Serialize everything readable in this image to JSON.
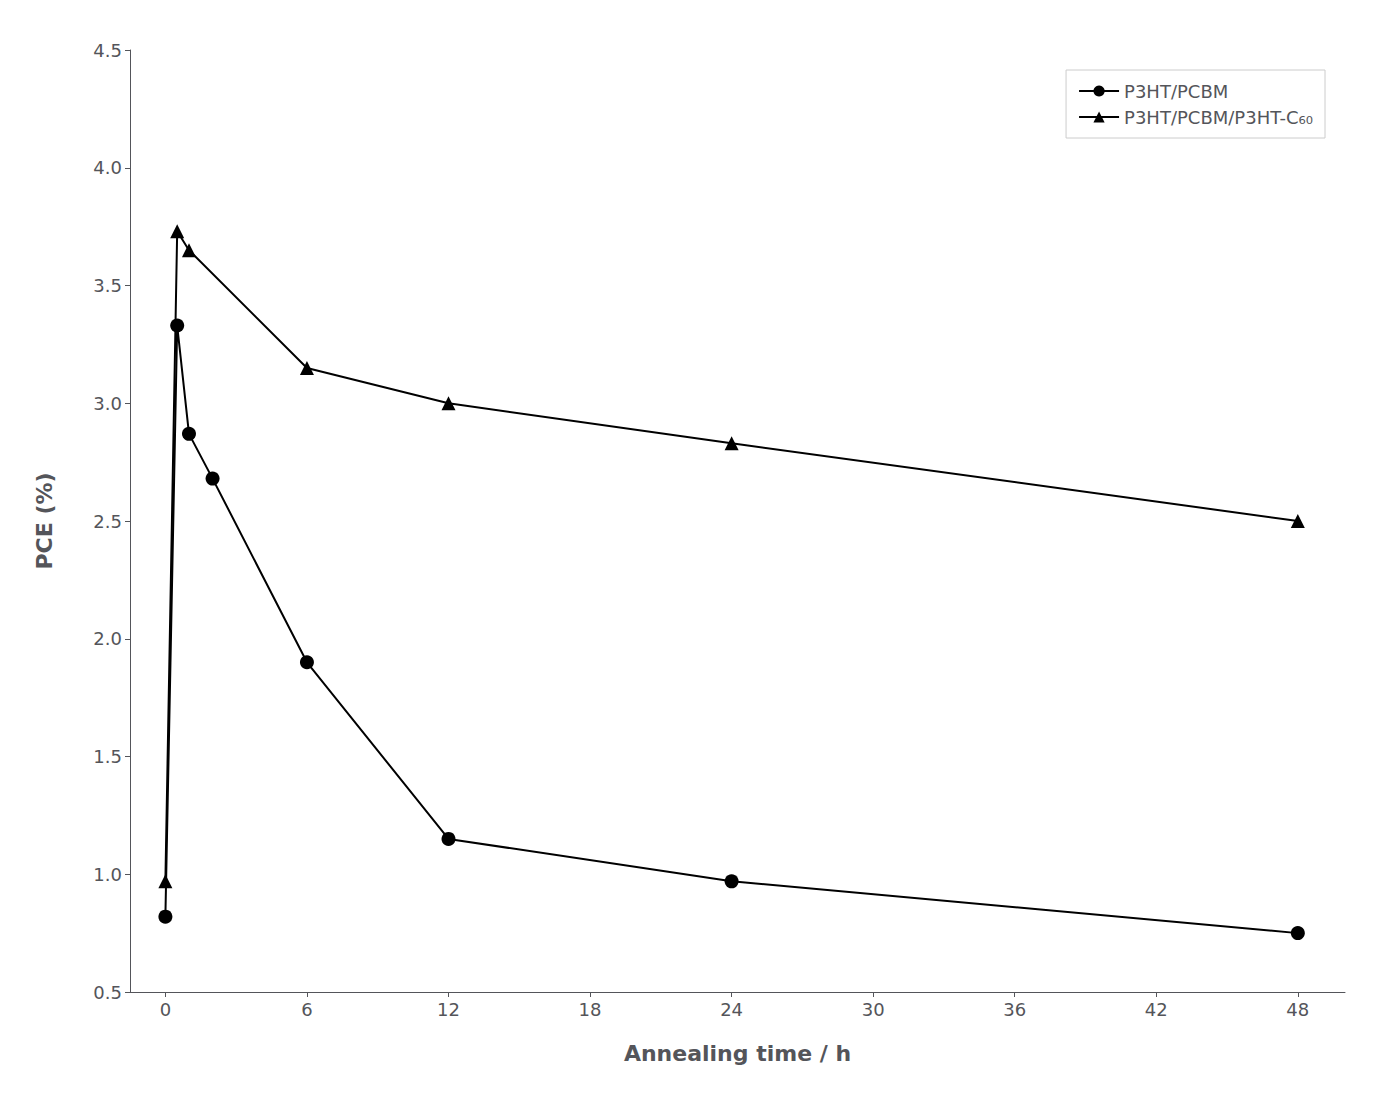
{
  "chart_data": {
    "type": "line",
    "xlabel": "Annealing time / h",
    "ylabel": "PCE (%)",
    "series": [
      {
        "name": "P3HT/PCBM",
        "color": "#000000",
        "marker": "circle",
        "x": [
          0,
          0.5,
          1,
          2,
          6,
          12,
          24,
          48
        ],
        "values": [
          0.82,
          3.33,
          2.87,
          2.68,
          1.9,
          1.15,
          0.97,
          0.75
        ]
      },
      {
        "name": "P3HT/PCBM/P3HT-C₆₀",
        "color": "#000000",
        "marker": "triangle",
        "x": [
          0,
          0.5,
          1,
          6,
          12,
          24,
          48
        ],
        "values": [
          0.97,
          3.73,
          3.65,
          3.15,
          3.0,
          2.83,
          2.5
        ]
      }
    ],
    "xlim": [
      -1.5,
      50
    ],
    "ylim": [
      0.5,
      4.5
    ],
    "xticks": [
      0,
      6,
      12,
      18,
      24,
      30,
      36,
      42,
      48
    ],
    "yticks": [
      0.5,
      {
        "value": 1,
        "label": "1.0"
      },
      1.5,
      {
        "value": 2,
        "label": "2.0"
      },
      2.5,
      {
        "value": 3,
        "label": "3.0"
      },
      3.5,
      {
        "value": 4,
        "label": "4.0"
      },
      4.5
    ],
    "grid": false,
    "legend": "upper right"
  }
}
